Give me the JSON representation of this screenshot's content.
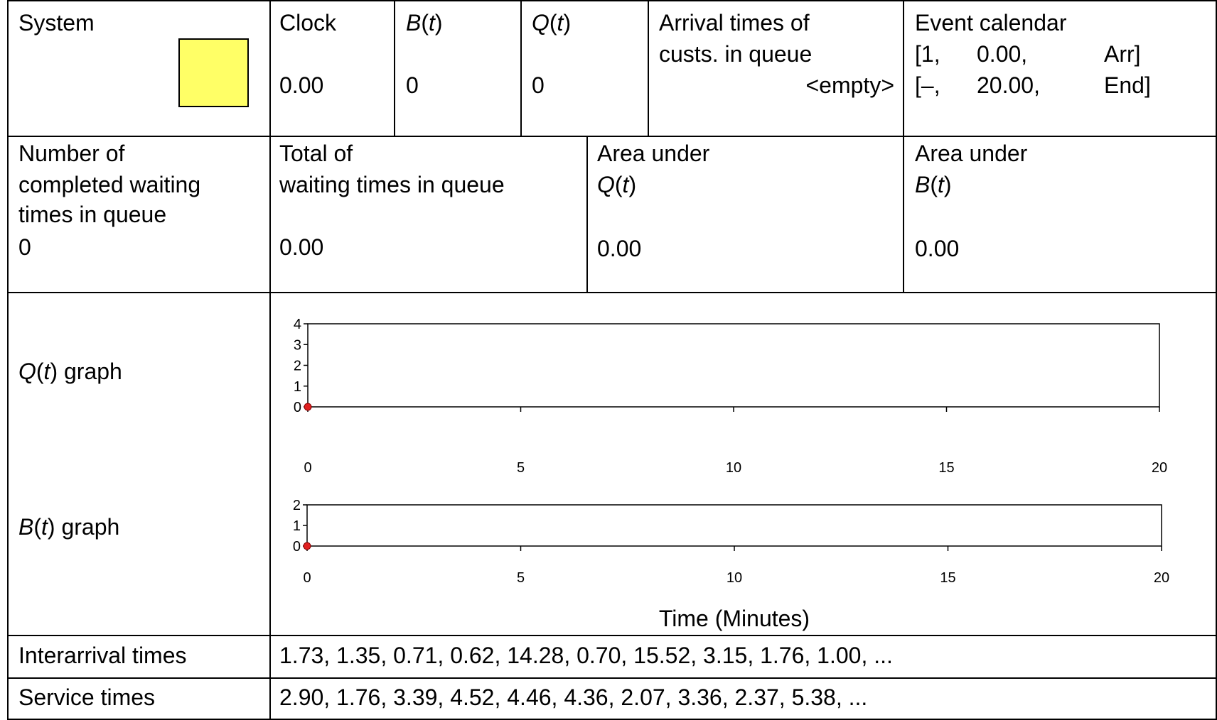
{
  "system": {
    "label": "System",
    "server_color": "#FFFF66"
  },
  "clock": {
    "label": "Clock",
    "value": "0.00"
  },
  "B": {
    "name": "B",
    "arg": "t",
    "value": "0"
  },
  "Q": {
    "name": "Q",
    "arg": "t",
    "value": "0"
  },
  "arrivals_in_queue": {
    "label_line1": "Arrival times of",
    "label_line2": "custs. in queue",
    "value": "<empty>"
  },
  "event_calendar": {
    "label": "Event calendar",
    "events": [
      {
        "open": "[1,",
        "time": "0.00,",
        "type": "Arr]"
      },
      {
        "open": "[–,",
        "time": "20.00,",
        "type": "End]"
      }
    ]
  },
  "stats": {
    "completed_waits": {
      "line1": "Number of",
      "line2": "completed waiting",
      "line3": "times in queue",
      "value": "0"
    },
    "total_waits": {
      "line1": "Total of",
      "line2": "waiting times in queue",
      "value": "0.00"
    },
    "area_Q": {
      "line1": "Area under",
      "name": "Q",
      "arg": "t",
      "value": "0.00"
    },
    "area_B": {
      "line1": "Area under",
      "name": "B",
      "arg": "t",
      "value": "0.00"
    }
  },
  "graph_labels": {
    "q_name": "Q",
    "q_arg": "t",
    "q_suffix": " graph",
    "b_name": "B",
    "b_arg": "t",
    "b_suffix": " graph"
  },
  "chart_data": [
    {
      "type": "line",
      "x_ticks": [
        "0",
        "5",
        "10",
        "15",
        "20"
      ],
      "y_ticks": [
        "0",
        "1",
        "2",
        "3",
        "4"
      ],
      "xlim": [
        0,
        20
      ],
      "ylim": [
        0,
        4
      ],
      "points": [
        {
          "x": 0,
          "y": 0
        }
      ],
      "point_color": "#E02020"
    },
    {
      "type": "line",
      "x_ticks": [
        "0",
        "5",
        "10",
        "15",
        "20"
      ],
      "y_ticks": [
        "0",
        "1",
        "2"
      ],
      "xlim": [
        0,
        20
      ],
      "ylim": [
        0,
        2
      ],
      "points": [
        {
          "x": 0,
          "y": 0
        }
      ],
      "point_color": "#E02020",
      "xlabel": "Time (Minutes)"
    }
  ],
  "inputs": {
    "interarrival_label": "Interarrival times",
    "interarrival_values": "1.73, 1.35, 0.71, 0.62, 14.28, 0.70, 15.52, 3.15, 1.76, 1.00, ...",
    "service_label": "Service times",
    "service_values": "2.90, 1.76, 3.39, 4.52, 4.46, 4.36, 2.07, 3.36, 2.37, 5.38, ..."
  }
}
